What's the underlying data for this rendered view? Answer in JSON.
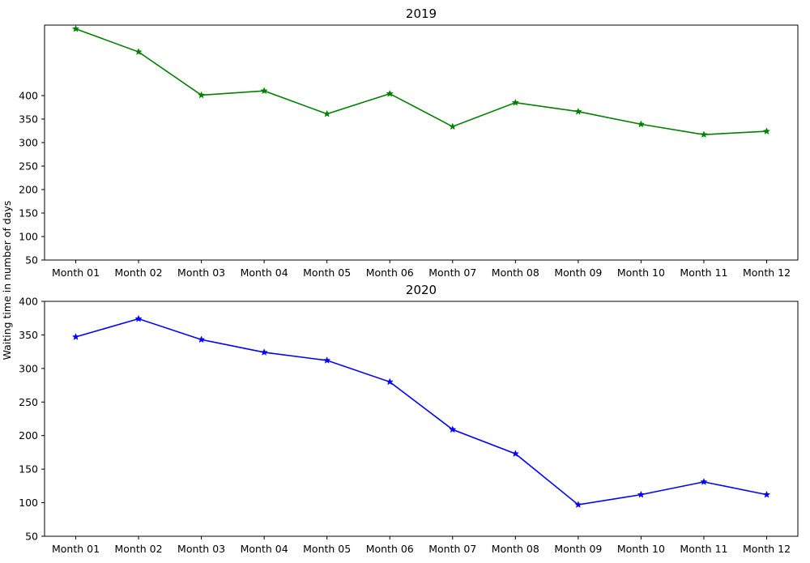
{
  "figure": {
    "ylabel": "Waiting time in number of days"
  },
  "chart_data": [
    {
      "type": "line",
      "title": "2019",
      "categories": [
        "Month 01",
        "Month 02",
        "Month 03",
        "Month 04",
        "Month 05",
        "Month 06",
        "Month 07",
        "Month 08",
        "Month 09",
        "Month 10",
        "Month 11",
        "Month 12"
      ],
      "series": [
        {
          "values": [
            542,
            493,
            401,
            410,
            361,
            404,
            334,
            385,
            366,
            339,
            317,
            324
          ],
          "color": "#008000",
          "marker": "star"
        }
      ],
      "ylim": [
        50,
        550
      ],
      "yticks": [
        50,
        100,
        150,
        200,
        250,
        300,
        350,
        400
      ],
      "grid": false
    },
    {
      "type": "line",
      "title": "2020",
      "categories": [
        "Month 01",
        "Month 02",
        "Month 03",
        "Month 04",
        "Month 05",
        "Month 06",
        "Month 07",
        "Month 08",
        "Month 09",
        "Month 10",
        "Month 11",
        "Month 12"
      ],
      "series": [
        {
          "values": [
            347,
            374,
            343,
            324,
            312,
            280,
            209,
            173,
            97,
            112,
            131,
            112
          ],
          "color": "#0000ff",
          "marker": "star"
        }
      ],
      "ylim": [
        50,
        400
      ],
      "yticks": [
        50,
        100,
        150,
        200,
        250,
        300,
        350,
        400
      ],
      "grid": false
    }
  ]
}
